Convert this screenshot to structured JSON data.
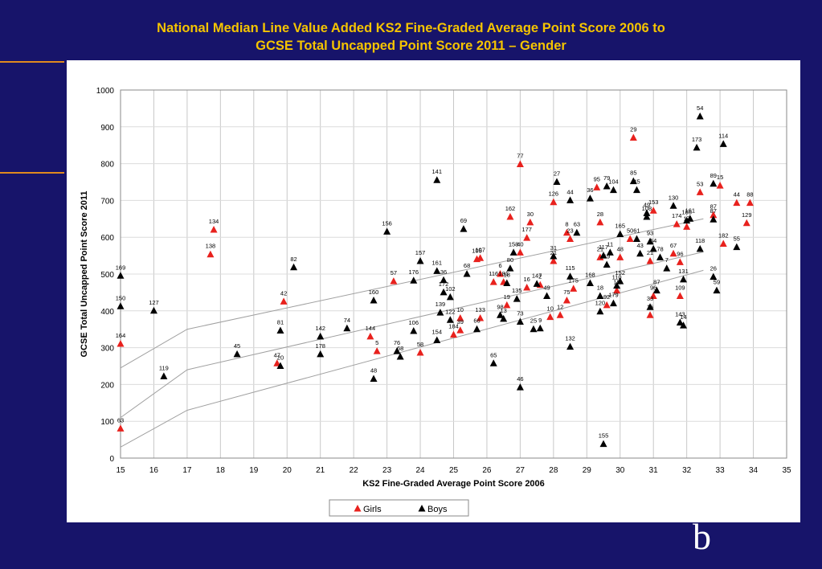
{
  "slide": {
    "title_line1": "National Median Line Value Added KS2 Fine-Graded Average Point Score 2006 to",
    "title_line2": "GCSE Total Uncapped Point Score 2011 – Gender",
    "corner_letter": "b"
  },
  "chart_data": {
    "type": "scatter",
    "xlabel": "KS2 Fine-Graded Average Point Score 2006",
    "ylabel": "GCSE Total Uncapped Point Score 2011",
    "xlim": [
      15,
      35
    ],
    "ylim": [
      0,
      1000
    ],
    "x_ticks": [
      "15",
      "16",
      "17",
      "18",
      "19",
      "20",
      "21",
      "22",
      "23",
      "24",
      "25",
      "26",
      "27",
      "28",
      "29",
      "30",
      "31",
      "32",
      "33",
      "34",
      "35"
    ],
    "y_ticks": [
      "0",
      "100",
      "200",
      "300",
      "400",
      "500",
      "600",
      "700",
      "800",
      "900",
      "1000"
    ],
    "grid": "vertical-and-horizontal",
    "legend_position": "bottom-center",
    "colors": {
      "girls": "#e8211d",
      "boys": "#000000",
      "median_lines": "#a0a0a0",
      "title": "#f5c400",
      "background": "#17146a"
    },
    "median_lines": [
      [
        [
          15,
          245
        ],
        [
          17,
          350
        ],
        [
          32.5,
          650
        ]
      ],
      [
        [
          15,
          110
        ],
        [
          17,
          240
        ],
        [
          32.5,
          560
        ]
      ],
      [
        [
          15,
          30
        ],
        [
          17,
          130
        ],
        [
          32.5,
          510
        ]
      ]
    ],
    "series": [
      {
        "name": "Girls",
        "marker": "triangle",
        "points": [
          {
            "x": 15.0,
            "y": 80,
            "label": "63"
          },
          {
            "x": 15.0,
            "y": 310,
            "label": "164"
          },
          {
            "x": 17.7,
            "y": 553,
            "label": "138"
          },
          {
            "x": 17.8,
            "y": 620,
            "label": "134"
          },
          {
            "x": 19.7,
            "y": 257,
            "label": "47"
          },
          {
            "x": 19.9,
            "y": 425,
            "label": "42"
          },
          {
            "x": 22.5,
            "y": 330,
            "label": "144"
          },
          {
            "x": 22.7,
            "y": 290,
            "label": "5"
          },
          {
            "x": 23.2,
            "y": 480,
            "label": "57"
          },
          {
            "x": 24.0,
            "y": 286,
            "label": "58"
          },
          {
            "x": 25.0,
            "y": 335,
            "label": "184"
          },
          {
            "x": 25.2,
            "y": 380,
            "label": "10"
          },
          {
            "x": 25.2,
            "y": 347,
            "label": "39"
          },
          {
            "x": 25.7,
            "y": 540,
            "label": "105"
          },
          {
            "x": 25.8,
            "y": 543,
            "label": "107"
          },
          {
            "x": 25.8,
            "y": 380,
            "label": "133"
          },
          {
            "x": 26.2,
            "y": 478,
            "label": "116"
          },
          {
            "x": 26.4,
            "y": 500,
            "label": "6"
          },
          {
            "x": 26.5,
            "y": 478,
            "label": "181"
          },
          {
            "x": 26.6,
            "y": 415,
            "label": "19"
          },
          {
            "x": 26.7,
            "y": 655,
            "label": "162"
          },
          {
            "x": 27.0,
            "y": 798,
            "label": "77"
          },
          {
            "x": 27.0,
            "y": 558,
            "label": "40"
          },
          {
            "x": 27.2,
            "y": 598,
            "label": "177"
          },
          {
            "x": 27.3,
            "y": 640,
            "label": "30"
          },
          {
            "x": 27.2,
            "y": 463,
            "label": "16"
          },
          {
            "x": 27.6,
            "y": 470,
            "label": "2"
          },
          {
            "x": 27.9,
            "y": 383,
            "label": "10"
          },
          {
            "x": 28.0,
            "y": 535,
            "label": "21"
          },
          {
            "x": 28.0,
            "y": 695,
            "label": "126"
          },
          {
            "x": 28.2,
            "y": 388,
            "label": "12"
          },
          {
            "x": 28.4,
            "y": 612,
            "label": "8"
          },
          {
            "x": 28.4,
            "y": 428,
            "label": "75"
          },
          {
            "x": 28.5,
            "y": 595,
            "label": "23"
          },
          {
            "x": 28.6,
            "y": 460,
            "label": "175"
          },
          {
            "x": 29.3,
            "y": 735,
            "label": "95"
          },
          {
            "x": 29.4,
            "y": 545,
            "label": "21"
          },
          {
            "x": 29.4,
            "y": 640,
            "label": "28"
          },
          {
            "x": 29.6,
            "y": 415,
            "label": "92"
          },
          {
            "x": 29.9,
            "y": 455,
            "label": "19"
          },
          {
            "x": 30.0,
            "y": 545,
            "label": "48"
          },
          {
            "x": 30.3,
            "y": 595,
            "label": "50"
          },
          {
            "x": 30.4,
            "y": 870,
            "label": "29"
          },
          {
            "x": 30.9,
            "y": 535,
            "label": "21"
          },
          {
            "x": 30.9,
            "y": 388,
            "label": "16"
          },
          {
            "x": 31.0,
            "y": 440,
            "label": "96"
          },
          {
            "x": 31.0,
            "y": 672,
            "label": "153"
          },
          {
            "x": 31.6,
            "y": 555,
            "label": "67"
          },
          {
            "x": 31.7,
            "y": 635,
            "label": "174"
          },
          {
            "x": 31.8,
            "y": 532,
            "label": "96"
          },
          {
            "x": 31.8,
            "y": 440,
            "label": "109"
          },
          {
            "x": 32.0,
            "y": 628,
            "label": "17"
          },
          {
            "x": 32.4,
            "y": 722,
            "label": "53"
          },
          {
            "x": 32.8,
            "y": 660,
            "label": "87"
          },
          {
            "x": 33.0,
            "y": 740,
            "label": "15"
          },
          {
            "x": 33.1,
            "y": 582,
            "label": "182"
          },
          {
            "x": 33.5,
            "y": 693,
            "label": "44"
          },
          {
            "x": 33.8,
            "y": 638,
            "label": "129"
          },
          {
            "x": 33.9,
            "y": 693,
            "label": "88"
          }
        ]
      },
      {
        "name": "Boys",
        "marker": "triangle",
        "points": [
          {
            "x": 15.0,
            "y": 495,
            "label": "169"
          },
          {
            "x": 15.0,
            "y": 412,
            "label": "150"
          },
          {
            "x": 16.0,
            "y": 400,
            "label": "127"
          },
          {
            "x": 16.3,
            "y": 222,
            "label": "119"
          },
          {
            "x": 18.5,
            "y": 282,
            "label": "45"
          },
          {
            "x": 19.8,
            "y": 346,
            "label": "81"
          },
          {
            "x": 19.8,
            "y": 250,
            "label": "20"
          },
          {
            "x": 20.2,
            "y": 518,
            "label": "82"
          },
          {
            "x": 21.0,
            "y": 330,
            "label": "142"
          },
          {
            "x": 21.0,
            "y": 282,
            "label": "178"
          },
          {
            "x": 21.8,
            "y": 352,
            "label": "74"
          },
          {
            "x": 22.6,
            "y": 428,
            "label": "160"
          },
          {
            "x": 22.6,
            "y": 215,
            "label": "48"
          },
          {
            "x": 23.0,
            "y": 615,
            "label": "156"
          },
          {
            "x": 23.3,
            "y": 290,
            "label": "76"
          },
          {
            "x": 23.4,
            "y": 275,
            "label": "68"
          },
          {
            "x": 23.8,
            "y": 482,
            "label": "176"
          },
          {
            "x": 23.8,
            "y": 345,
            "label": "106"
          },
          {
            "x": 24.0,
            "y": 535,
            "label": "157"
          },
          {
            "x": 24.5,
            "y": 755,
            "label": "141"
          },
          {
            "x": 24.5,
            "y": 508,
            "label": "161"
          },
          {
            "x": 24.5,
            "y": 320,
            "label": "154"
          },
          {
            "x": 24.6,
            "y": 395,
            "label": "139"
          },
          {
            "x": 24.7,
            "y": 483,
            "label": "36"
          },
          {
            "x": 24.7,
            "y": 450,
            "label": "172"
          },
          {
            "x": 24.9,
            "y": 375,
            "label": "122"
          },
          {
            "x": 24.9,
            "y": 437,
            "label": "102"
          },
          {
            "x": 25.3,
            "y": 622,
            "label": "69"
          },
          {
            "x": 25.4,
            "y": 500,
            "label": "68"
          },
          {
            "x": 25.7,
            "y": 350,
            "label": "66"
          },
          {
            "x": 26.2,
            "y": 257,
            "label": "65"
          },
          {
            "x": 26.4,
            "y": 388,
            "label": "98"
          },
          {
            "x": 26.5,
            "y": 378,
            "label": "13"
          },
          {
            "x": 26.6,
            "y": 475,
            "label": "18"
          },
          {
            "x": 26.7,
            "y": 515,
            "label": "80"
          },
          {
            "x": 26.8,
            "y": 558,
            "label": "158"
          },
          {
            "x": 26.9,
            "y": 432,
            "label": "135"
          },
          {
            "x": 27.0,
            "y": 370,
            "label": "73"
          },
          {
            "x": 27.0,
            "y": 192,
            "label": "46"
          },
          {
            "x": 27.4,
            "y": 350,
            "label": "25"
          },
          {
            "x": 27.5,
            "y": 473,
            "label": "147"
          },
          {
            "x": 27.6,
            "y": 352,
            "label": "9"
          },
          {
            "x": 27.8,
            "y": 440,
            "label": "49"
          },
          {
            "x": 28.0,
            "y": 548,
            "label": "31"
          },
          {
            "x": 28.1,
            "y": 750,
            "label": "27"
          },
          {
            "x": 28.5,
            "y": 302,
            "label": "132"
          },
          {
            "x": 28.5,
            "y": 493,
            "label": "115"
          },
          {
            "x": 28.5,
            "y": 700,
            "label": "44"
          },
          {
            "x": 28.7,
            "y": 612,
            "label": "63"
          },
          {
            "x": 29.1,
            "y": 705,
            "label": "36"
          },
          {
            "x": 29.1,
            "y": 475,
            "label": "168"
          },
          {
            "x": 29.4,
            "y": 398,
            "label": "120"
          },
          {
            "x": 29.4,
            "y": 440,
            "label": "18"
          },
          {
            "x": 29.5,
            "y": 38,
            "label": "155"
          },
          {
            "x": 29.5,
            "y": 550,
            "label": "117"
          },
          {
            "x": 29.6,
            "y": 738,
            "label": "79"
          },
          {
            "x": 29.6,
            "y": 525,
            "label": "19"
          },
          {
            "x": 29.7,
            "y": 558,
            "label": "11"
          },
          {
            "x": 29.8,
            "y": 728,
            "label": "104"
          },
          {
            "x": 29.8,
            "y": 420,
            "label": "179"
          },
          {
            "x": 29.9,
            "y": 468,
            "label": "110"
          },
          {
            "x": 30.0,
            "y": 608,
            "label": "165"
          },
          {
            "x": 30.0,
            "y": 480,
            "label": "152"
          },
          {
            "x": 30.4,
            "y": 752,
            "label": "85"
          },
          {
            "x": 30.5,
            "y": 595,
            "label": "61"
          },
          {
            "x": 30.5,
            "y": 728,
            "label": "45"
          },
          {
            "x": 30.6,
            "y": 555,
            "label": "43"
          },
          {
            "x": 30.8,
            "y": 665,
            "label": "49"
          },
          {
            "x": 30.8,
            "y": 655,
            "label": "108"
          },
          {
            "x": 30.9,
            "y": 410,
            "label": "33"
          },
          {
            "x": 30.9,
            "y": 588,
            "label": "93"
          },
          {
            "x": 31.0,
            "y": 568,
            "label": "54"
          },
          {
            "x": 31.1,
            "y": 455,
            "label": "87"
          },
          {
            "x": 31.2,
            "y": 545,
            "label": "78"
          },
          {
            "x": 31.4,
            "y": 515,
            "label": "7"
          },
          {
            "x": 31.6,
            "y": 685,
            "label": "130"
          },
          {
            "x": 31.8,
            "y": 368,
            "label": "143"
          },
          {
            "x": 31.9,
            "y": 485,
            "label": "131"
          },
          {
            "x": 31.9,
            "y": 360,
            "label": "14"
          },
          {
            "x": 32.0,
            "y": 645,
            "label": "186"
          },
          {
            "x": 32.1,
            "y": 650,
            "label": "161"
          },
          {
            "x": 32.3,
            "y": 843,
            "label": "173"
          },
          {
            "x": 32.4,
            "y": 928,
            "label": "54"
          },
          {
            "x": 32.4,
            "y": 568,
            "label": "118"
          },
          {
            "x": 32.8,
            "y": 745,
            "label": "89"
          },
          {
            "x": 32.8,
            "y": 648,
            "label": "87"
          },
          {
            "x": 32.8,
            "y": 492,
            "label": "26"
          },
          {
            "x": 32.9,
            "y": 455,
            "label": "59"
          },
          {
            "x": 33.1,
            "y": 853,
            "label": "114"
          },
          {
            "x": 33.5,
            "y": 573,
            "label": "55"
          }
        ]
      }
    ]
  }
}
